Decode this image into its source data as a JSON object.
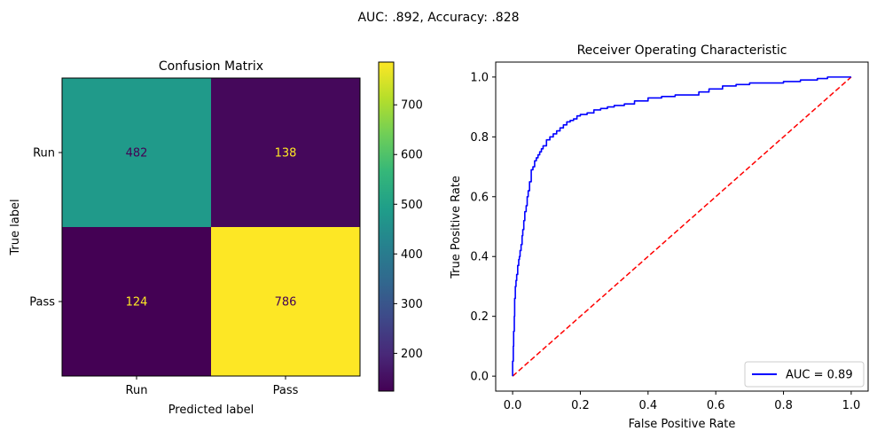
{
  "suptitle": "AUC: .892, Accuracy: .828",
  "colors": {
    "roc_line": "#0000ff",
    "diagonal": "#ff0000",
    "axis": "#000000",
    "viridis_stops": [
      "#440154",
      "#482878",
      "#3e4989",
      "#31688e",
      "#26828e",
      "#1f9e89",
      "#35b779",
      "#6ece58",
      "#b5de2b",
      "#fde725"
    ]
  },
  "chart_data": [
    {
      "type": "heatmap",
      "title": "Confusion Matrix",
      "xlabel": "Predicted label",
      "ylabel": "True label",
      "x_categories": [
        "Run",
        "Pass"
      ],
      "y_categories": [
        "Run",
        "Pass"
      ],
      "values": [
        [
          482,
          138
        ],
        [
          124,
          786
        ]
      ],
      "colorbar": {
        "range": [
          124,
          786
        ],
        "ticks": [
          200,
          300,
          400,
          500,
          600,
          700
        ],
        "tick_labels": [
          "200",
          "300",
          "400",
          "500",
          "600",
          "700"
        ]
      },
      "colormap": "viridis"
    },
    {
      "type": "line",
      "title": "Receiver Operating Characteristic",
      "xlabel": "False Positive Rate",
      "ylabel": "True Positive Rate",
      "xlim": [
        -0.05,
        1.05
      ],
      "ylim": [
        -0.05,
        1.05
      ],
      "xticks": [
        0.0,
        0.2,
        0.4,
        0.6,
        0.8,
        1.0
      ],
      "xtick_labels": [
        "0.0",
        "0.2",
        "0.4",
        "0.6",
        "0.8",
        "1.0"
      ],
      "yticks": [
        0.0,
        0.2,
        0.4,
        0.6,
        0.8,
        1.0
      ],
      "ytick_labels": [
        "0.0",
        "0.2",
        "0.4",
        "0.6",
        "0.8",
        "1.0"
      ],
      "legend_position": "lower-right",
      "series": [
        {
          "name": "AUC = 0.89",
          "style": "solid",
          "x": [
            0.0,
            0.0,
            0.002,
            0.003,
            0.005,
            0.006,
            0.008,
            0.01,
            0.012,
            0.015,
            0.018,
            0.02,
            0.022,
            0.025,
            0.028,
            0.03,
            0.033,
            0.036,
            0.04,
            0.043,
            0.046,
            0.05,
            0.055,
            0.06,
            0.065,
            0.07,
            0.075,
            0.08,
            0.085,
            0.09,
            0.1,
            0.11,
            0.12,
            0.13,
            0.14,
            0.15,
            0.16,
            0.17,
            0.18,
            0.19,
            0.2,
            0.22,
            0.24,
            0.26,
            0.28,
            0.3,
            0.33,
            0.36,
            0.4,
            0.44,
            0.48,
            0.52,
            0.55,
            0.58,
            0.62,
            0.66,
            0.7,
            0.75,
            0.8,
            0.85,
            0.88,
            0.9,
            0.93,
            0.95,
            0.97,
            1.0
          ],
          "y": [
            0.0,
            0.05,
            0.1,
            0.15,
            0.2,
            0.26,
            0.3,
            0.32,
            0.34,
            0.37,
            0.39,
            0.4,
            0.42,
            0.44,
            0.47,
            0.49,
            0.52,
            0.55,
            0.57,
            0.6,
            0.62,
            0.65,
            0.69,
            0.7,
            0.72,
            0.73,
            0.74,
            0.75,
            0.76,
            0.77,
            0.79,
            0.8,
            0.81,
            0.82,
            0.83,
            0.84,
            0.85,
            0.855,
            0.86,
            0.87,
            0.875,
            0.88,
            0.89,
            0.895,
            0.9,
            0.905,
            0.91,
            0.92,
            0.93,
            0.935,
            0.94,
            0.94,
            0.95,
            0.96,
            0.97,
            0.975,
            0.98,
            0.98,
            0.985,
            0.99,
            0.99,
            0.995,
            1.0,
            1.0,
            1.0,
            1.0
          ]
        },
        {
          "name": "",
          "style": "dashed",
          "x": [
            0.0,
            1.0
          ],
          "y": [
            0.0,
            1.0
          ]
        }
      ]
    }
  ]
}
